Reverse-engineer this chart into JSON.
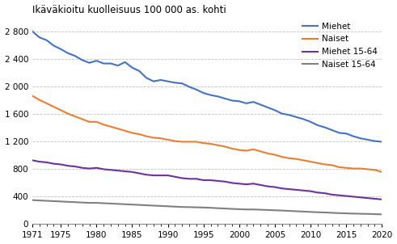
{
  "title": "Ikäväkioitu kuolleisuus 100 000 as. kohti",
  "years": [
    1971,
    1972,
    1973,
    1974,
    1975,
    1976,
    1977,
    1978,
    1979,
    1980,
    1981,
    1982,
    1983,
    1984,
    1985,
    1986,
    1987,
    1988,
    1989,
    1990,
    1991,
    1992,
    1993,
    1994,
    1995,
    1996,
    1997,
    1998,
    1999,
    2000,
    2001,
    2002,
    2003,
    2004,
    2005,
    2006,
    2007,
    2008,
    2009,
    2010,
    2011,
    2012,
    2013,
    2014,
    2015,
    2016,
    2017,
    2018,
    2019,
    2020
  ],
  "miehet": [
    2810,
    2720,
    2680,
    2600,
    2550,
    2490,
    2450,
    2390,
    2350,
    2380,
    2340,
    2340,
    2310,
    2360,
    2280,
    2230,
    2130,
    2080,
    2100,
    2080,
    2060,
    2050,
    2000,
    1960,
    1910,
    1880,
    1860,
    1830,
    1800,
    1790,
    1760,
    1780,
    1740,
    1700,
    1660,
    1610,
    1590,
    1560,
    1530,
    1490,
    1440,
    1410,
    1370,
    1330,
    1320,
    1280,
    1250,
    1230,
    1210,
    1200
  ],
  "naiset": [
    1870,
    1810,
    1760,
    1710,
    1660,
    1610,
    1570,
    1530,
    1490,
    1490,
    1450,
    1420,
    1390,
    1360,
    1330,
    1310,
    1280,
    1260,
    1250,
    1230,
    1210,
    1200,
    1200,
    1200,
    1180,
    1170,
    1150,
    1130,
    1100,
    1080,
    1070,
    1090,
    1060,
    1030,
    1010,
    980,
    960,
    950,
    930,
    910,
    890,
    870,
    860,
    830,
    820,
    810,
    810,
    800,
    790,
    760
  ],
  "miehet_1564": [
    930,
    910,
    900,
    880,
    870,
    850,
    840,
    820,
    810,
    820,
    800,
    790,
    780,
    770,
    760,
    740,
    720,
    710,
    710,
    710,
    690,
    670,
    660,
    660,
    640,
    640,
    630,
    620,
    600,
    590,
    580,
    590,
    570,
    550,
    540,
    520,
    510,
    500,
    490,
    480,
    460,
    450,
    430,
    420,
    410,
    400,
    390,
    380,
    370,
    360
  ],
  "naiset_1564": [
    350,
    345,
    340,
    335,
    330,
    325,
    320,
    315,
    310,
    310,
    305,
    300,
    295,
    290,
    285,
    280,
    275,
    270,
    265,
    260,
    255,
    250,
    248,
    245,
    242,
    238,
    232,
    228,
    222,
    218,
    214,
    214,
    210,
    206,
    202,
    198,
    193,
    188,
    183,
    178,
    173,
    170,
    165,
    160,
    157,
    154,
    151,
    149,
    146,
    142
  ],
  "color_miehet": "#4472c4",
  "color_naiset": "#ed7d31",
  "color_miehet_1564": "#7030a0",
  "color_naiset_1564": "#808080",
  "ylim": [
    0,
    3000
  ],
  "yticks": [
    0,
    400,
    800,
    1200,
    1600,
    2000,
    2400,
    2800
  ],
  "xticks": [
    1971,
    1975,
    1980,
    1985,
    1990,
    1995,
    2000,
    2005,
    2010,
    2015,
    2020
  ],
  "legend_labels": [
    "Miehet",
    "Naiset",
    "Miehet 15-64",
    "Naiset 15-64"
  ]
}
